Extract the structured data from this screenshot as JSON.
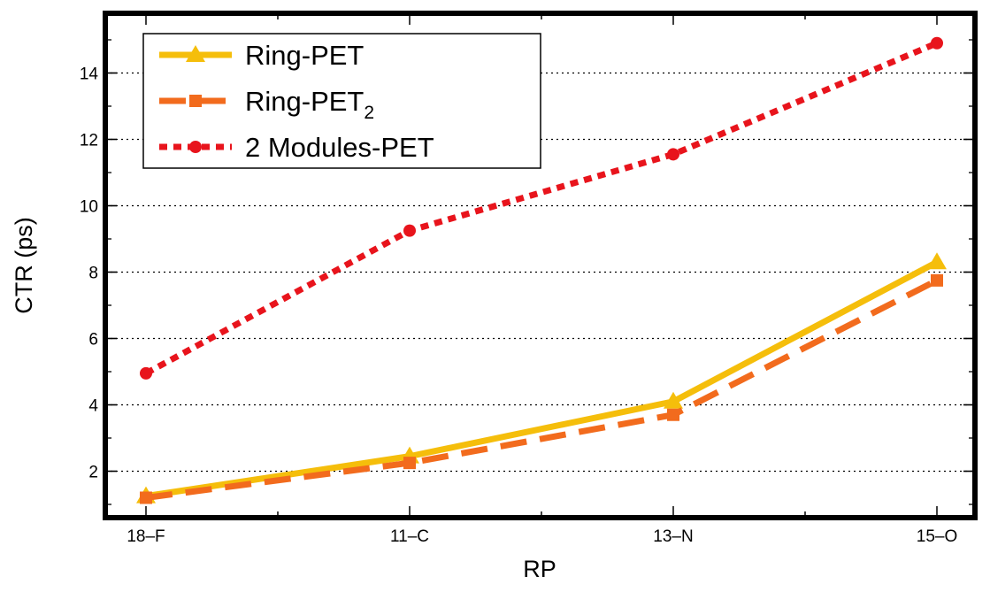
{
  "chart_data": {
    "type": "line",
    "title": "",
    "xlabel": "RP",
    "ylabel": "CTR (ps)",
    "categories": [
      "18–F",
      "11–C",
      "13–N",
      "15–O"
    ],
    "ylim": [
      0.6,
      15.8
    ],
    "yticks": [
      2,
      4,
      6,
      8,
      10,
      12,
      14
    ],
    "grid": "y-dotted",
    "legend": {
      "position": "top-left",
      "entries": [
        {
          "label": "Ring-PET",
          "subscript": ""
        },
        {
          "label": "Ring-PET",
          "subscript": "2"
        },
        {
          "label": "2 Modules-PET",
          "subscript": ""
        }
      ]
    },
    "series": [
      {
        "name": "Ring-PET",
        "color": "#F5BE0B",
        "style": "solid",
        "marker": "triangle",
        "values": [
          1.25,
          2.45,
          4.1,
          8.3
        ]
      },
      {
        "name": "Ring-PET2",
        "color": "#F26B1D",
        "style": "dashed",
        "marker": "square",
        "values": [
          1.2,
          2.25,
          3.7,
          7.75
        ]
      },
      {
        "name": "2 Modules-PET",
        "color": "#E8141C",
        "style": "dotted",
        "marker": "circle",
        "values": [
          4.95,
          9.25,
          11.55,
          14.9
        ]
      }
    ]
  }
}
